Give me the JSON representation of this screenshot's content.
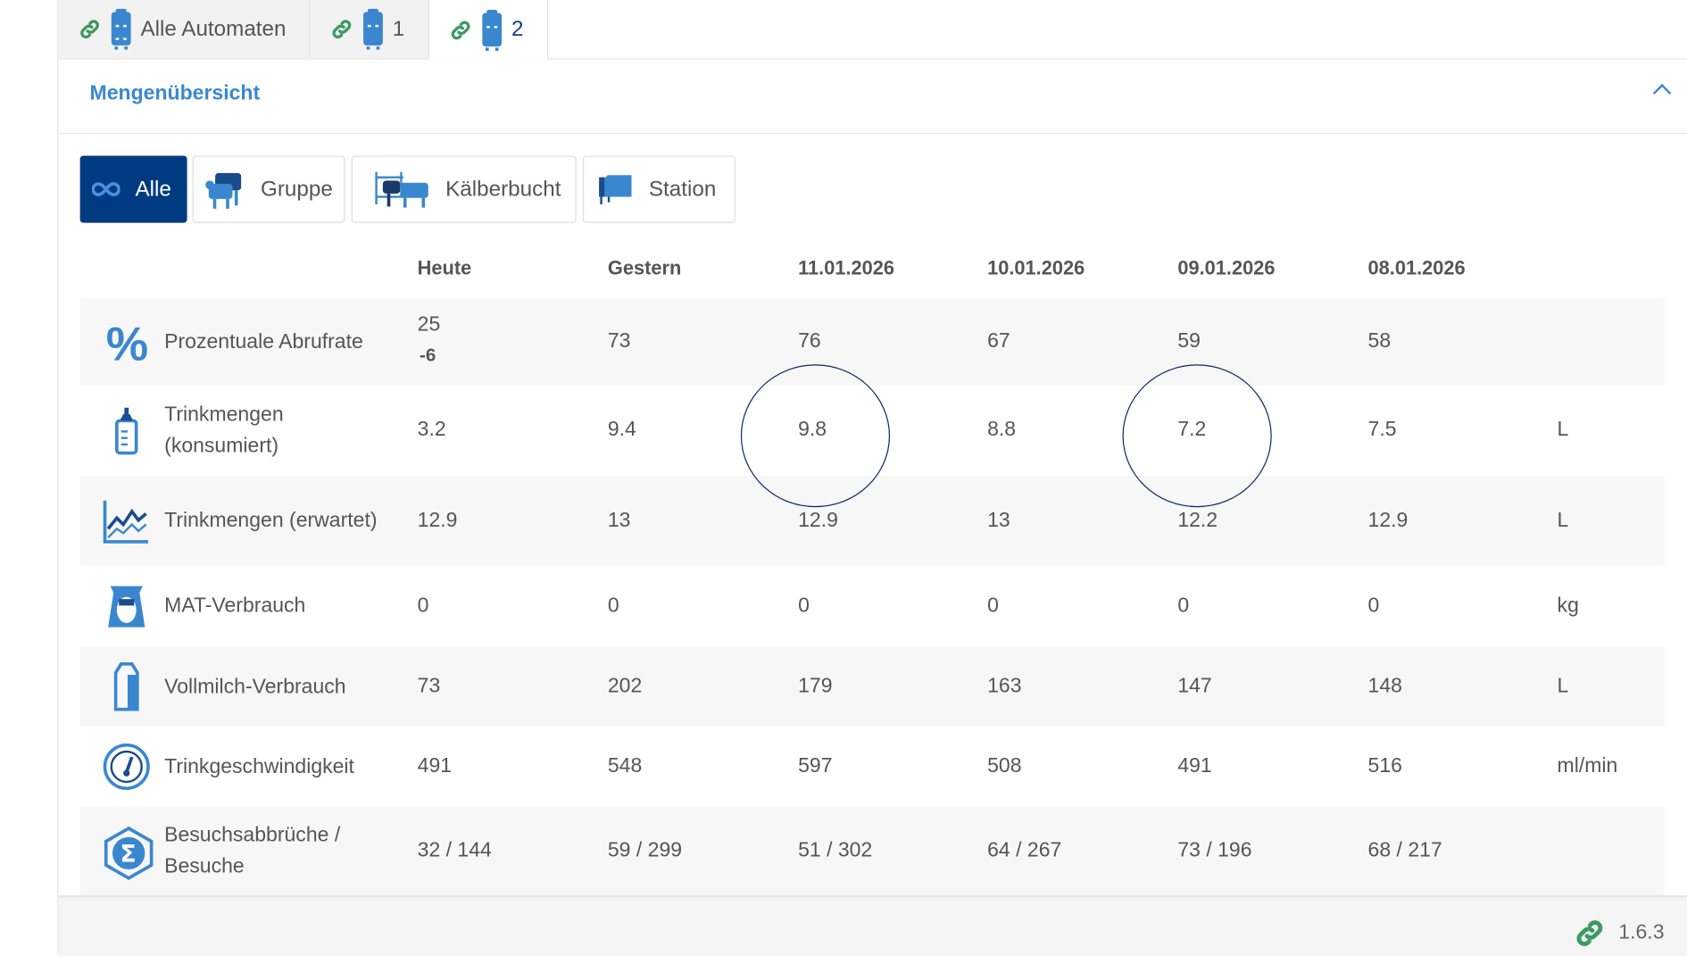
{
  "tabs": [
    {
      "label": "Alle Automaten",
      "icon": "link-icon",
      "active": false
    },
    {
      "label": "1",
      "icon": "link-icon",
      "active": false
    },
    {
      "label": "2",
      "icon": "link-icon",
      "active": true
    }
  ],
  "section": {
    "title": "Mengenübersicht",
    "collapse_icon": "chevron-up-icon"
  },
  "filters": [
    {
      "label": "Alle",
      "icon": "infinity-icon",
      "active": true
    },
    {
      "label": "Gruppe",
      "icon": "cow-group-icon"
    },
    {
      "label": "Kälberbucht",
      "icon": "calf-pen-icon"
    },
    {
      "label": "Station",
      "icon": "station-icon"
    }
  ],
  "columns": [
    "Heute",
    "Gestern",
    "11.01.2026",
    "10.01.2026",
    "09.01.2026",
    "08.01.2026"
  ],
  "rows": [
    {
      "label": "Prozentuale Abrufrate",
      "icon": "percent-icon",
      "values": [
        "25",
        "73",
        "76",
        "67",
        "59",
        "58"
      ],
      "delta": "-6",
      "unit": ""
    },
    {
      "label": "Trinkmengen (konsumiert)",
      "icon": "bottle-icon",
      "values": [
        "3.2",
        "9.4",
        "9.8",
        "8.8",
        "7.2",
        "7.5"
      ],
      "unit": "L"
    },
    {
      "label": "Trinkmengen (erwartet)",
      "icon": "chart-line-icon",
      "values": [
        "12.9",
        "13",
        "12.9",
        "13",
        "12.2",
        "12.9"
      ],
      "unit": "L"
    },
    {
      "label": "MAT-Verbrauch",
      "icon": "milk-powder-bag-icon",
      "values": [
        "0",
        "0",
        "0",
        "0",
        "0",
        "0"
      ],
      "unit": "kg"
    },
    {
      "label": "Vollmilch-Verbrauch",
      "icon": "milk-carton-icon",
      "values": [
        "73",
        "202",
        "179",
        "163",
        "147",
        "148"
      ],
      "unit": "L"
    },
    {
      "label": "Trinkgeschwindigkeit",
      "icon": "speedometer-icon",
      "values": [
        "491",
        "548",
        "597",
        "508",
        "491",
        "516"
      ],
      "unit": "ml/min"
    },
    {
      "label": "Besuchsabbrüche / Besuche",
      "icon": "sigma-icon",
      "values": [
        "32 / 144",
        "59 / 299",
        "51 / 302",
        "64 / 267",
        "73 / 196",
        "68 / 217"
      ],
      "unit": ""
    }
  ],
  "footer": {
    "version": "1.6.3",
    "icon": "link-icon"
  },
  "colors": {
    "accent": "#3a87d0",
    "active": "#003a80",
    "link": "#3c9a5f",
    "annotation": "#0c2a66"
  }
}
